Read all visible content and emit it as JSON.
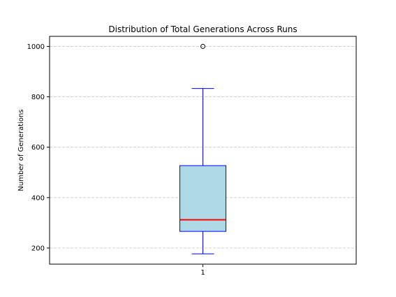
{
  "chart_data": {
    "type": "box",
    "title": "Distribution of Total Generations Across Runs",
    "xlabel": "",
    "ylabel": "Number of Generations",
    "categories": [
      "1"
    ],
    "boxes": [
      {
        "category": "1",
        "whisker_low": 177,
        "q1": 266,
        "median": 312,
        "q3": 527,
        "whisker_high": 833,
        "outliers": [
          1000
        ]
      }
    ],
    "ylim": [
      136,
      1040
    ],
    "yticks": [
      200,
      400,
      600,
      800,
      1000
    ],
    "grid": "y-dashed",
    "colors": {
      "box_fill": "#add8e6",
      "box_edge": "#0000ff",
      "median": "#ff0000",
      "grid": "#c8c8c8",
      "axes": "#000000"
    }
  }
}
